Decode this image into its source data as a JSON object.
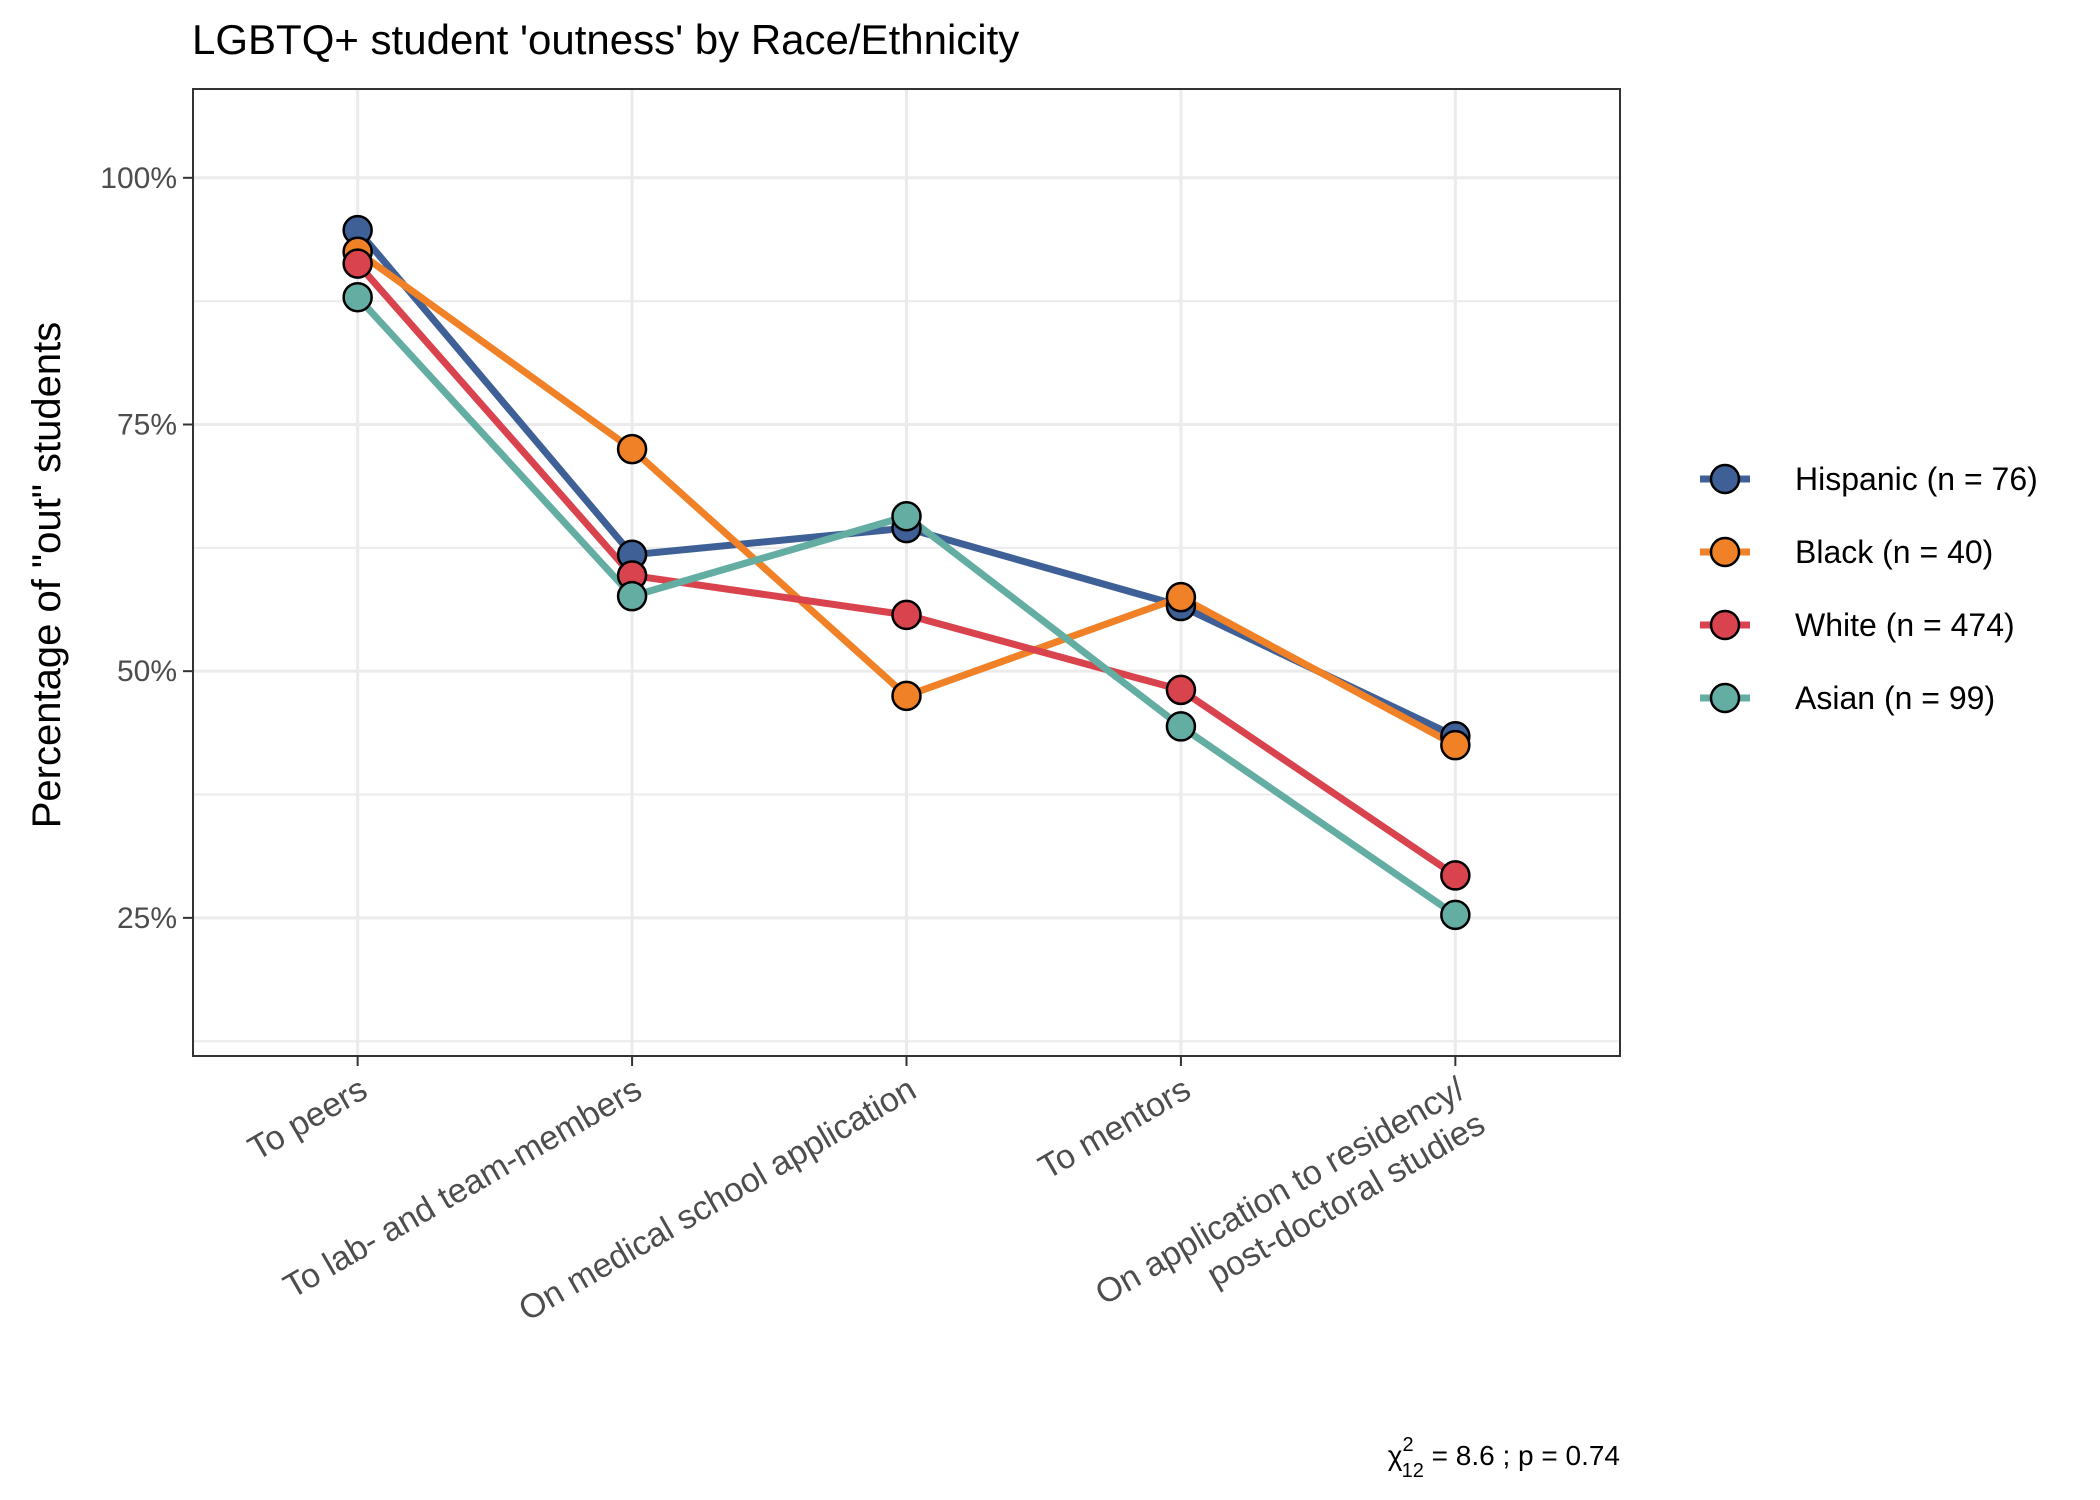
{
  "chart_data": {
    "type": "line",
    "title": "LGBTQ+ student 'outness' by Race/Ethnicity",
    "ylabel": "Percentage of \"out\" students",
    "xlabel": "",
    "categories": [
      "To peers",
      "To lab- and team-members",
      "On medical school application",
      "To mentors",
      "On application to residency/\npost-doctoral studies"
    ],
    "ylim": [
      0.11,
      1.09
    ],
    "yticks": [
      0.25,
      0.5,
      0.75,
      1.0
    ],
    "ytick_labels": [
      "25%",
      "50%",
      "75%",
      "100%"
    ],
    "grid": true,
    "legend_position": "right",
    "series": [
      {
        "name": "Hispanic (n = 76)",
        "color": "#3F6096",
        "values": [
          0.947,
          0.618,
          0.645,
          0.566,
          0.434
        ]
      },
      {
        "name": "Black (n = 40)",
        "color": "#F08126",
        "values": [
          0.925,
          0.725,
          0.475,
          0.575,
          0.425
        ]
      },
      {
        "name": "White (n = 474)",
        "color": "#D9434D",
        "values": [
          0.913,
          0.597,
          0.557,
          0.481,
          0.293
        ]
      },
      {
        "name": "Asian (n = 99)",
        "color": "#64ADA3",
        "values": [
          0.879,
          0.576,
          0.657,
          0.444,
          0.253
        ]
      }
    ],
    "annotation": {
      "chi_symbol": "χ",
      "chi_sup": "2",
      "chi_sub": "12",
      "text": " = 8.6 ;  p = 0.74"
    }
  }
}
